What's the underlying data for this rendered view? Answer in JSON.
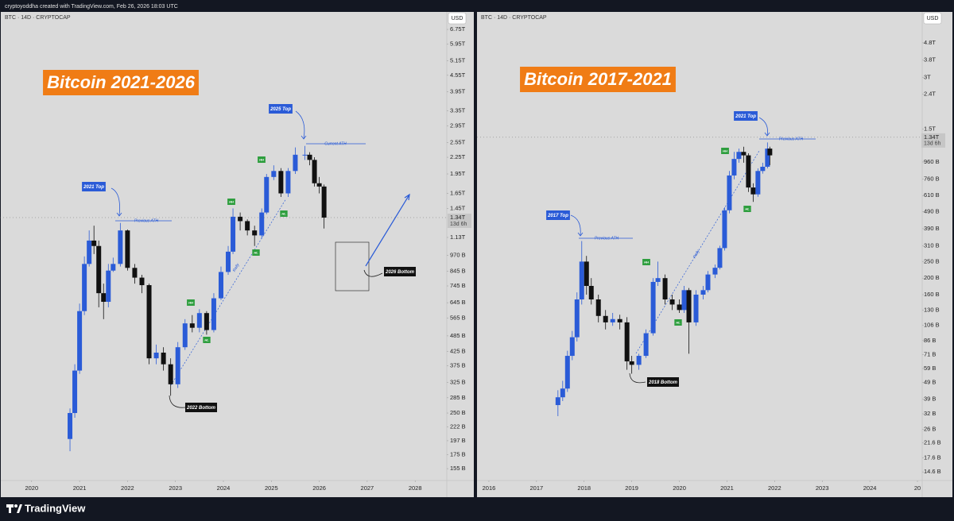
{
  "header": "cryptoyoddha created with TradingView.com, Feb 26, 2026 18:03 UTC",
  "footer_brand": "TradingView",
  "chart_data": [
    {
      "type": "candlestick",
      "symbol": "BTC · 14D · CRYPTOCAP",
      "currency": "USD",
      "log_scale": true,
      "grid": false,
      "up_color": "#2a5bd7",
      "down_color": "#111111",
      "xlim": [
        2019.34,
        2028.66
      ],
      "ylim": [
        140,
        7180
      ],
      "xticks": [
        2020,
        2021,
        2022,
        2023,
        2024,
        2025,
        2026,
        2027,
        2028
      ],
      "yticks": [
        {
          "value": 6750,
          "label": "6.75T"
        },
        {
          "value": 5950,
          "label": "5.95T"
        },
        {
          "value": 5150,
          "label": "5.15T"
        },
        {
          "value": 4550,
          "label": "4.55T"
        },
        {
          "value": 3950,
          "label": "3.95T"
        },
        {
          "value": 3350,
          "label": "3.35T"
        },
        {
          "value": 2950,
          "label": "2.95T"
        },
        {
          "value": 2550,
          "label": "2.55T"
        },
        {
          "value": 2250,
          "label": "2.25T"
        },
        {
          "value": 1950,
          "label": "1.95T"
        },
        {
          "value": 1650,
          "label": "1.65T"
        },
        {
          "value": 1450,
          "label": "1.45T"
        },
        {
          "value": 1130,
          "label": "1.13T"
        },
        {
          "value": 970,
          "label": "970 B"
        },
        {
          "value": 845,
          "label": "845 B"
        },
        {
          "value": 745,
          "label": "745 B"
        },
        {
          "value": 645,
          "label": "645 B"
        },
        {
          "value": 565,
          "label": "565 B"
        },
        {
          "value": 485,
          "label": "485 B"
        },
        {
          "value": 425,
          "label": "425 B"
        },
        {
          "value": 375,
          "label": "375 B"
        },
        {
          "value": 325,
          "label": "325 B"
        },
        {
          "value": 285,
          "label": "285 B"
        },
        {
          "value": 250,
          "label": "250 B"
        },
        {
          "value": 222,
          "label": "222 B"
        },
        {
          "value": 197,
          "label": "197 B"
        },
        {
          "value": 175,
          "label": "175 B"
        },
        {
          "value": 155,
          "label": "155 B"
        }
      ],
      "last_price": {
        "value": 1340,
        "label": "1.34T"
      },
      "countdown": "13d 6h",
      "x": [
        2020.8,
        2020.9,
        2021.0,
        2021.1,
        2021.2,
        2021.3,
        2021.4,
        2021.5,
        2021.6,
        2021.7,
        2021.85,
        2022.0,
        2022.15,
        2022.3,
        2022.45,
        2022.6,
        2022.75,
        2022.9,
        2023.05,
        2023.2,
        2023.35,
        2023.5,
        2023.65,
        2023.8,
        2023.95,
        2024.1,
        2024.2,
        2024.35,
        2024.5,
        2024.65,
        2024.8,
        2024.9,
        2025.05,
        2025.2,
        2025.35,
        2025.5,
        2025.7,
        2025.8,
        2025.9,
        2026.0,
        2026.1
      ],
      "open": [
        200,
        250,
        360,
        600,
        900,
        1100,
        1050,
        700,
        650,
        850,
        900,
        1200,
        870,
        800,
        750,
        400,
        420,
        380,
        320,
        440,
        540,
        520,
        590,
        510,
        670,
        840,
        1000,
        1350,
        1300,
        1200,
        1150,
        1400,
        1900,
        2000,
        1650,
        2000,
        2300,
        2300,
        2200,
        1800,
        1750
      ],
      "high": [
        260,
        380,
        640,
        960,
        1200,
        1250,
        1100,
        760,
        900,
        950,
        1280,
        1210,
        900,
        820,
        760,
        450,
        440,
        400,
        460,
        560,
        580,
        610,
        600,
        700,
        880,
        1050,
        1450,
        1400,
        1320,
        1250,
        1450,
        1950,
        2100,
        2050,
        2050,
        2450,
        2480,
        2350,
        2250,
        1900,
        1780
      ],
      "low": [
        180,
        240,
        350,
        580,
        880,
        980,
        620,
        560,
        620,
        840,
        880,
        850,
        760,
        700,
        380,
        380,
        360,
        290,
        310,
        430,
        500,
        500,
        490,
        500,
        660,
        820,
        980,
        1200,
        1150,
        1050,
        1120,
        1380,
        1850,
        1600,
        1600,
        1950,
        2200,
        2100,
        1750,
        1650,
        1220
      ],
      "close": [
        250,
        360,
        600,
        900,
        1100,
        1050,
        700,
        650,
        850,
        900,
        1200,
        870,
        800,
        750,
        400,
        420,
        380,
        320,
        440,
        540,
        520,
        590,
        510,
        670,
        840,
        1000,
        1350,
        1300,
        1200,
        1150,
        1400,
        1900,
        2000,
        1650,
        2000,
        2300,
        2300,
        2200,
        1800,
        1750,
        1340
      ],
      "annotations": [
        "Bitcoin 2021-2026",
        "2021 Top",
        "2025 Top",
        "Previous ATH",
        "Current ATH",
        "Rally",
        "2022 Bottom",
        "2026 Bottom",
        "HH",
        "HH",
        "HH",
        "HL",
        "HL",
        "HL"
      ]
    },
    {
      "type": "candlestick",
      "symbol": "BTC · 14D · CRYPTOCAP",
      "currency": "USD",
      "log_scale": true,
      "grid": false,
      "up_color": "#2a5bd7",
      "down_color": "#111111",
      "xlim": [
        2015.75,
        2025.1
      ],
      "ylim": [
        13,
        6545
      ],
      "xticks": [
        2016,
        2017,
        2018,
        2019,
        2020,
        2021,
        2022,
        2023,
        2024,
        {
          "value": 2025,
          "label": "20"
        }
      ],
      "yticks": [
        {
          "value": 4800,
          "label": "4.8T"
        },
        {
          "value": 3800,
          "label": "3.8T"
        },
        {
          "value": 3000,
          "label": "3T"
        },
        {
          "value": 2400,
          "label": "2.4T"
        },
        {
          "value": 1500,
          "label": "1.5T"
        },
        {
          "value": 960,
          "label": "960 B"
        },
        {
          "value": 760,
          "label": "760 B"
        },
        {
          "value": 610,
          "label": "610 B"
        },
        {
          "value": 490,
          "label": "490 B"
        },
        {
          "value": 390,
          "label": "390 B"
        },
        {
          "value": 310,
          "label": "310 B"
        },
        {
          "value": 250,
          "label": "250 B"
        },
        {
          "value": 200,
          "label": "200 B"
        },
        {
          "value": 160,
          "label": "160 B"
        },
        {
          "value": 130,
          "label": "130 B"
        },
        {
          "value": 106,
          "label": "106 B"
        },
        {
          "value": 86,
          "label": "86 B"
        },
        {
          "value": 71,
          "label": "71 B"
        },
        {
          "value": 59,
          "label": "59 B"
        },
        {
          "value": 49,
          "label": "49 B"
        },
        {
          "value": 39,
          "label": "39 B"
        },
        {
          "value": 32,
          "label": "32 B"
        },
        {
          "value": 26,
          "label": "26 B"
        },
        {
          "value": 21.6,
          "label": "21.6 B"
        },
        {
          "value": 17.6,
          "label": "17.6 B"
        },
        {
          "value": 14.6,
          "label": "14.6 B"
        }
      ],
      "last_price": {
        "value": 1340,
        "label": "1.34T"
      },
      "countdown": "13d 6h",
      "x": [
        2017.45,
        2017.55,
        2017.65,
        2017.75,
        2017.85,
        2017.95,
        2018.05,
        2018.15,
        2018.3,
        2018.45,
        2018.6,
        2018.75,
        2018.9,
        2019.0,
        2019.15,
        2019.3,
        2019.45,
        2019.55,
        2019.7,
        2019.85,
        2020.0,
        2020.1,
        2020.2,
        2020.35,
        2020.5,
        2020.6,
        2020.75,
        2020.85,
        2020.95,
        2021.05,
        2021.15,
        2021.25,
        2021.35,
        2021.45,
        2021.55,
        2021.65,
        2021.75,
        2021.85,
        2021.9
      ],
      "open": [
        36,
        40,
        45,
        70,
        90,
        150,
        250,
        180,
        150,
        120,
        110,
        115,
        110,
        65,
        62,
        70,
        95,
        190,
        200,
        150,
        140,
        130,
        170,
        110,
        160,
        170,
        210,
        230,
        300,
        500,
        800,
        1000,
        1100,
        1050,
        680,
        620,
        850,
        900,
        1150
      ],
      "high": [
        44,
        50,
        75,
        98,
        165,
        330,
        270,
        200,
        160,
        130,
        125,
        122,
        118,
        70,
        72,
        100,
        200,
        250,
        210,
        160,
        150,
        180,
        175,
        170,
        180,
        220,
        240,
        310,
        520,
        850,
        1100,
        1150,
        1180,
        1080,
        720,
        880,
        950,
        1250,
        1180
      ],
      "low": [
        31,
        38,
        43,
        66,
        85,
        140,
        160,
        140,
        110,
        100,
        105,
        100,
        58,
        55,
        58,
        68,
        92,
        180,
        140,
        130,
        125,
        125,
        72,
        105,
        150,
        165,
        200,
        225,
        290,
        480,
        760,
        950,
        950,
        640,
        560,
        600,
        820,
        880,
        920
      ],
      "close": [
        40,
        45,
        70,
        90,
        150,
        250,
        180,
        150,
        120,
        110,
        115,
        110,
        65,
        62,
        70,
        95,
        190,
        200,
        150,
        140,
        130,
        170,
        110,
        160,
        170,
        210,
        230,
        300,
        500,
        800,
        1000,
        1100,
        1050,
        680,
        620,
        850,
        900,
        1150,
        1050
      ],
      "annotations": [
        "Bitcoin 2017-2021",
        "2017 Top",
        "2021 Top",
        "Previous ATH",
        "Previous ATH",
        "Rally",
        "2018 Bottom",
        "HH",
        "HH",
        "HL",
        "HL"
      ]
    }
  ]
}
